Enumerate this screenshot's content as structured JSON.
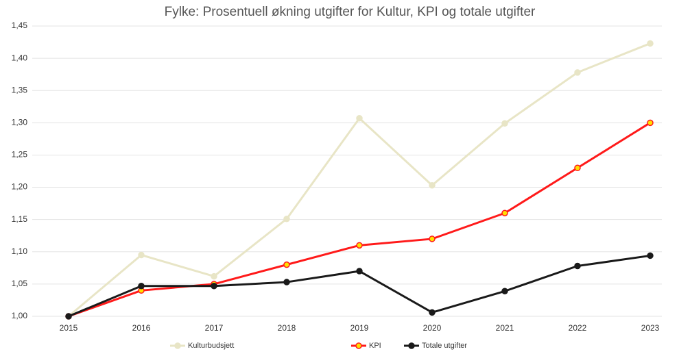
{
  "chart_data": {
    "type": "line",
    "title": "Fylke: Prosentuell økning utgifter for Kultur, KPI og totale utgifter",
    "categories": [
      "2015",
      "2016",
      "2017",
      "2018",
      "2019",
      "2020",
      "2021",
      "2022",
      "2023"
    ],
    "series": [
      {
        "name": "Kulturbudsjett",
        "color": "#e8e5c6",
        "marker_color": "#e8e5c6",
        "values": [
          1.0,
          1.095,
          1.062,
          1.151,
          1.307,
          1.203,
          1.299,
          1.378,
          1.423
        ]
      },
      {
        "name": "KPI",
        "color": "#ff1a1a",
        "marker_color": "#ffe000",
        "values": [
          1.0,
          1.04,
          1.05,
          1.08,
          1.11,
          1.12,
          1.16,
          1.23,
          1.3
        ]
      },
      {
        "name": "Totale utgifter",
        "color": "#1a1a1a",
        "marker_color": "#1a1a1a",
        "values": [
          1.0,
          1.047,
          1.047,
          1.053,
          1.07,
          1.006,
          1.039,
          1.078,
          1.094
        ]
      }
    ],
    "ylim": [
      1.0,
      1.45
    ],
    "yticks": [
      {
        "value": 1.0,
        "label": "1,00"
      },
      {
        "value": 1.05,
        "label": "1,05"
      },
      {
        "value": 1.1,
        "label": "1,10"
      },
      {
        "value": 1.15,
        "label": "1,15"
      },
      {
        "value": 1.2,
        "label": "1,20"
      },
      {
        "value": 1.25,
        "label": "1,25"
      },
      {
        "value": 1.3,
        "label": "1,30"
      },
      {
        "value": 1.35,
        "label": "1,35"
      },
      {
        "value": 1.4,
        "label": "1,40"
      },
      {
        "value": 1.45,
        "label": "1,45"
      }
    ],
    "grid": true,
    "legend": "bottom"
  }
}
